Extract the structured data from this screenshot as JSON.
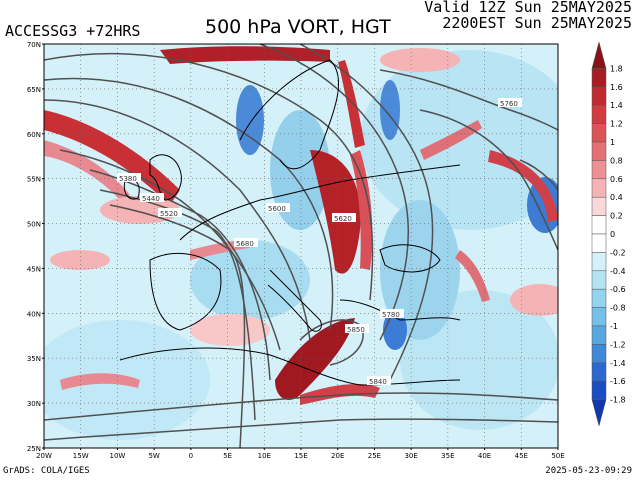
{
  "header": {
    "model_label": "ACCESSG3 +72HRS",
    "title": "500 hPa VORT, HGT",
    "valid_line": "Valid 12Z Sun 25MAY2025",
    "local_line": "2200EST Sun 25MAY2025"
  },
  "footer": {
    "credit": "GrADS: COLA/IGES",
    "timestamp": "2025-05-23-09:29"
  },
  "map": {
    "lat_labels": [
      "70N",
      "65N",
      "60N",
      "55N",
      "50N",
      "45N",
      "40N",
      "35N",
      "30N",
      "25N"
    ],
    "lon_labels": [
      "20W",
      "15W",
      "10W",
      "5W",
      "0",
      "5E",
      "10E",
      "15E",
      "20E",
      "25E",
      "30E",
      "35E",
      "40E",
      "45E",
      "50E"
    ],
    "contour_labels": [
      "5760",
      "5380",
      "5440",
      "5520",
      "5600",
      "5620",
      "5680",
      "5780",
      "5850",
      "5840"
    ],
    "colors": {
      "positive_max": "#a01820",
      "positive_mid": "#e06868",
      "positive_low": "#f8c8c8",
      "neutral": "#ffffff",
      "negative_low": "#c8ecf4",
      "negative_mid": "#7cc8e4",
      "negative_max": "#1858c8",
      "contour": "#505050",
      "coast": "#000000"
    }
  },
  "colorbar": {
    "labels": [
      "1.8",
      "1.6",
      "1.4",
      "1.2",
      "1",
      "0.8",
      "0.6",
      "0.4",
      "0.2",
      "0",
      "-0.2",
      "-0.4",
      "-0.6",
      "-0.8",
      "-1",
      "-1.2",
      "-1.4",
      "-1.6",
      "-1.8"
    ],
    "colors": [
      "#8c1018",
      "#a81c24",
      "#c02a30",
      "#d03c40",
      "#dc5458",
      "#e47074",
      "#ec9094",
      "#f4b4b6",
      "#fad8d8",
      "#ffffff",
      "#ffffff",
      "#d4f0f8",
      "#b4e4f4",
      "#94d4ee",
      "#74c0e8",
      "#58a8e0",
      "#4088d8",
      "#2c68d0",
      "#1a4cc4",
      "#1238b0"
    ]
  }
}
